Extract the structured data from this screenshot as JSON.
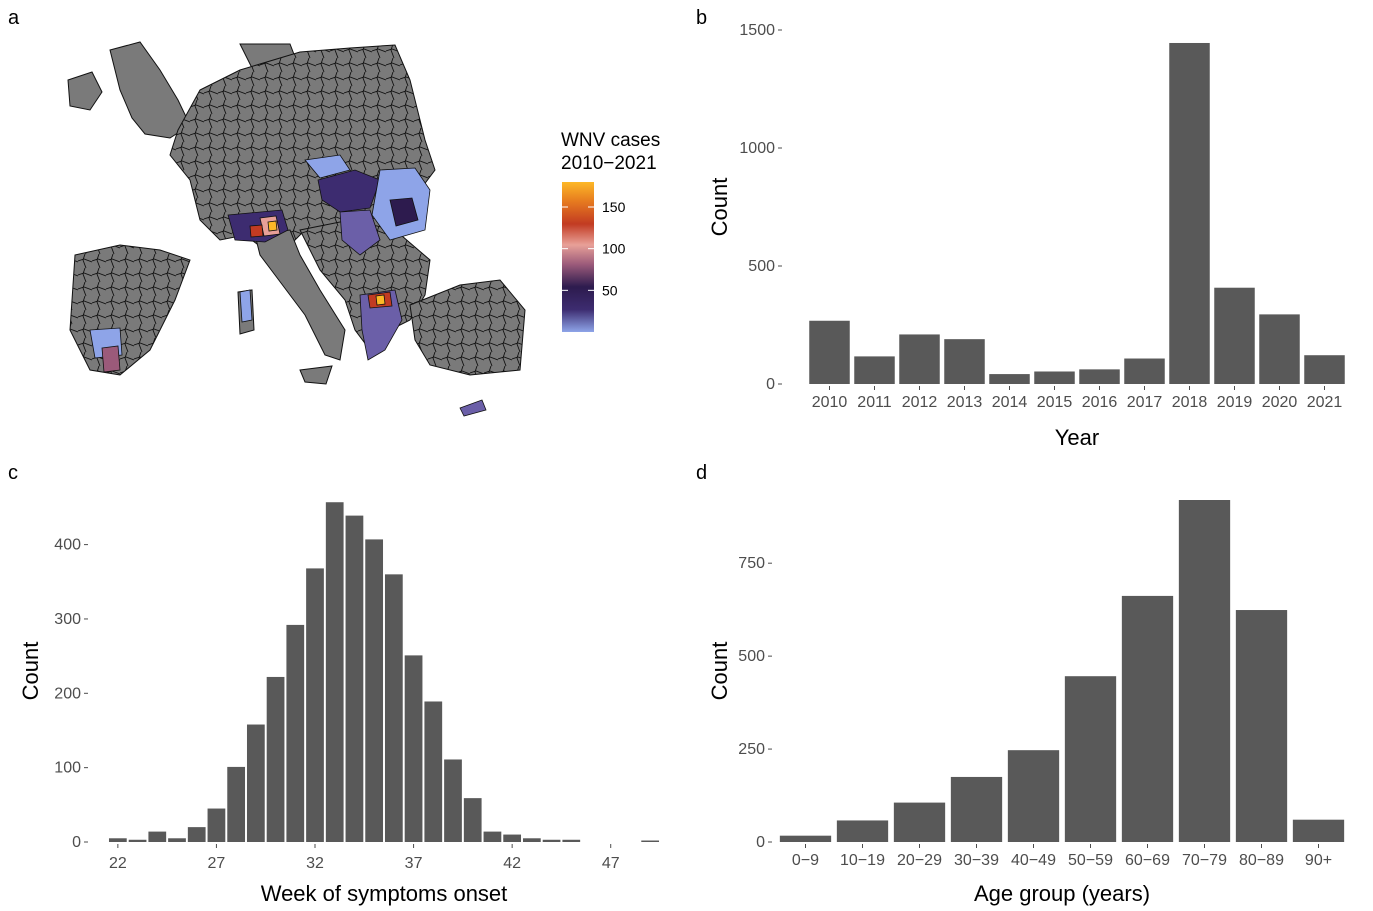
{
  "panels": {
    "a": "a",
    "b": "b",
    "c": "c",
    "d": "d"
  },
  "map": {
    "legend_title_line1": "WNV cases",
    "legend_title_line2": "2010−2021",
    "legend_ticks": [
      {
        "value": 150,
        "label": "150"
      },
      {
        "value": 100,
        "label": "100"
      },
      {
        "value": 50,
        "label": "50"
      }
    ],
    "legend_range": [
      0,
      180
    ],
    "base_color": "#7a7a7a",
    "colors": [
      "#fdb827",
      "#c23b22",
      "#e8a098",
      "#2d1b4e",
      "#8ea4e8"
    ]
  },
  "chart_data": [
    {
      "id": "b",
      "type": "bar",
      "categories": [
        "2010",
        "2011",
        "2012",
        "2013",
        "2014",
        "2015",
        "2016",
        "2017",
        "2018",
        "2019",
        "2020",
        "2021"
      ],
      "values": [
        268,
        117,
        210,
        190,
        42,
        53,
        62,
        108,
        1445,
        408,
        295,
        122
      ],
      "xlabel": "Year",
      "ylabel": "Count",
      "yticks": [
        0,
        500,
        1000,
        1500
      ],
      "ylim": [
        0,
        1500
      ],
      "bar_color": "#595959",
      "grid": false
    },
    {
      "id": "c",
      "type": "bar",
      "x": [
        22,
        23,
        24,
        25,
        26,
        27,
        28,
        29,
        30,
        31,
        32,
        33,
        34,
        35,
        36,
        37,
        38,
        39,
        40,
        41,
        42,
        43,
        44,
        45,
        46,
        47,
        48,
        49
      ],
      "values": [
        5,
        3,
        14,
        5,
        20,
        45,
        101,
        158,
        222,
        292,
        368,
        457,
        439,
        407,
        360,
        251,
        189,
        111,
        59,
        14,
        10,
        5,
        3,
        3,
        0,
        0,
        0,
        2
      ],
      "xticks": [
        22,
        27,
        32,
        37,
        42,
        47
      ],
      "xlabel": "Week of symptoms onset",
      "ylabel": "Count",
      "yticks": [
        0,
        100,
        200,
        300,
        400
      ],
      "ylim": [
        0,
        460
      ],
      "bar_color": "#595959",
      "grid": false
    },
    {
      "id": "d",
      "type": "bar",
      "categories": [
        "0−9",
        "10−19",
        "20−29",
        "30−39",
        "40−49",
        "50−59",
        "60−69",
        "70−79",
        "80−89",
        "90+"
      ],
      "values": [
        17,
        58,
        106,
        175,
        247,
        446,
        662,
        920,
        624,
        60
      ],
      "xlabel": "Age group (years)",
      "ylabel": "Count",
      "yticks": [
        0,
        250,
        500,
        750
      ],
      "ylim": [
        0,
        920
      ],
      "bar_color": "#595959",
      "grid": false
    }
  ]
}
